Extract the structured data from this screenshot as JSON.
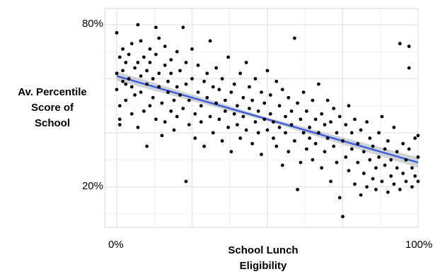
{
  "chart_data": {
    "type": "scatter",
    "title": "",
    "ylabel_lines": [
      "Av. Percentile",
      "Score of",
      "School"
    ],
    "xlabel_lines": [
      "School Lunch",
      "Eligibility"
    ],
    "xlim": [
      -0.04,
      1.0
    ],
    "ylim": [
      0.05,
      0.86
    ],
    "x_ticks": [
      {
        "value": 0.0,
        "label": "0%"
      },
      {
        "value": 1.0,
        "label": "100%"
      }
    ],
    "y_ticks": [
      {
        "value": 0.8,
        "label": "80%"
      },
      {
        "value": 0.2,
        "label": "20%"
      }
    ],
    "grid_x_major": [
      0.0,
      0.25,
      0.5,
      0.75,
      1.0
    ],
    "grid_x_minor": [
      0.125,
      0.375,
      0.625,
      0.875
    ],
    "grid_y_major": [
      0.2,
      0.4,
      0.6,
      0.8
    ],
    "grid_y_minor": [
      0.1,
      0.3,
      0.5,
      0.7
    ],
    "grid": true,
    "trend_line": {
      "x": [
        0.0,
        1.0
      ],
      "y": [
        0.61,
        0.29
      ],
      "color": "#3b5bdb",
      "band_halfwidth": 0.012
    },
    "points_color": "#000000",
    "points": [
      [
        0.0,
        0.77
      ],
      [
        0.0,
        0.62
      ],
      [
        0.0,
        0.56
      ],
      [
        0.01,
        0.5
      ],
      [
        0.01,
        0.43
      ],
      [
        0.01,
        0.45
      ],
      [
        0.01,
        0.68
      ],
      [
        0.02,
        0.71
      ],
      [
        0.02,
        0.63
      ],
      [
        0.02,
        0.59
      ],
      [
        0.03,
        0.58
      ],
      [
        0.03,
        0.66
      ],
      [
        0.03,
        0.52
      ],
      [
        0.04,
        0.6
      ],
      [
        0.04,
        0.69
      ],
      [
        0.05,
        0.47
      ],
      [
        0.05,
        0.57
      ],
      [
        0.05,
        0.73
      ],
      [
        0.06,
        0.64
      ],
      [
        0.06,
        0.54
      ],
      [
        0.07,
        0.8
      ],
      [
        0.07,
        0.66
      ],
      [
        0.07,
        0.42
      ],
      [
        0.08,
        0.61
      ],
      [
        0.08,
        0.74
      ],
      [
        0.08,
        0.55
      ],
      [
        0.09,
        0.48
      ],
      [
        0.09,
        0.68
      ],
      [
        0.1,
        0.35
      ],
      [
        0.1,
        0.63
      ],
      [
        0.1,
        0.58
      ],
      [
        0.11,
        0.71
      ],
      [
        0.11,
        0.5
      ],
      [
        0.11,
        0.66
      ],
      [
        0.12,
        0.6
      ],
      [
        0.12,
        0.53
      ],
      [
        0.13,
        0.79
      ],
      [
        0.13,
        0.45
      ],
      [
        0.13,
        0.69
      ],
      [
        0.14,
        0.57
      ],
      [
        0.14,
        0.75
      ],
      [
        0.14,
        0.62
      ],
      [
        0.15,
        0.39
      ],
      [
        0.15,
        0.51
      ],
      [
        0.16,
        0.72
      ],
      [
        0.16,
        0.65
      ],
      [
        0.16,
        0.44
      ],
      [
        0.17,
        0.59
      ],
      [
        0.17,
        0.55
      ],
      [
        0.18,
        0.67
      ],
      [
        0.18,
        0.48
      ],
      [
        0.18,
        0.62
      ],
      [
        0.19,
        0.52
      ],
      [
        0.19,
        0.41
      ],
      [
        0.2,
        0.7
      ],
      [
        0.2,
        0.57
      ],
      [
        0.2,
        0.46
      ],
      [
        0.21,
        0.63
      ],
      [
        0.21,
        0.54
      ],
      [
        0.22,
        0.79
      ],
      [
        0.22,
        0.49
      ],
      [
        0.23,
        0.22
      ],
      [
        0.23,
        0.66
      ],
      [
        0.23,
        0.58
      ],
      [
        0.24,
        0.43
      ],
      [
        0.24,
        0.52
      ],
      [
        0.25,
        0.71
      ],
      [
        0.25,
        0.6
      ],
      [
        0.26,
        0.47
      ],
      [
        0.26,
        0.38
      ],
      [
        0.27,
        0.55
      ],
      [
        0.27,
        0.65
      ],
      [
        0.28,
        0.5
      ],
      [
        0.28,
        0.44
      ],
      [
        0.29,
        0.59
      ],
      [
        0.29,
        0.35
      ],
      [
        0.3,
        0.62
      ],
      [
        0.3,
        0.53
      ],
      [
        0.31,
        0.74
      ],
      [
        0.31,
        0.46
      ],
      [
        0.32,
        0.57
      ],
      [
        0.32,
        0.4
      ],
      [
        0.33,
        0.51
      ],
      [
        0.33,
        0.64
      ],
      [
        0.34,
        0.45
      ],
      [
        0.34,
        0.56
      ],
      [
        0.35,
        0.37
      ],
      [
        0.35,
        0.6
      ],
      [
        0.36,
        0.48
      ],
      [
        0.36,
        0.52
      ],
      [
        0.37,
        0.42
      ],
      [
        0.37,
        0.68
      ],
      [
        0.38,
        0.55
      ],
      [
        0.38,
        0.33
      ],
      [
        0.39,
        0.47
      ],
      [
        0.39,
        0.58
      ],
      [
        0.4,
        0.5
      ],
      [
        0.4,
        0.43
      ],
      [
        0.41,
        0.62
      ],
      [
        0.41,
        0.38
      ],
      [
        0.42,
        0.53
      ],
      [
        0.42,
        0.46
      ],
      [
        0.43,
        0.66
      ],
      [
        0.43,
        0.41
      ],
      [
        0.44,
        0.49
      ],
      [
        0.44,
        0.57
      ],
      [
        0.45,
        0.36
      ],
      [
        0.45,
        0.52
      ],
      [
        0.46,
        0.44
      ],
      [
        0.46,
        0.6
      ],
      [
        0.47,
        0.48
      ],
      [
        0.47,
        0.4
      ],
      [
        0.48,
        0.55
      ],
      [
        0.48,
        0.32
      ],
      [
        0.49,
        0.45
      ],
      [
        0.49,
        0.51
      ],
      [
        0.5,
        0.63
      ],
      [
        0.5,
        0.41
      ],
      [
        0.51,
        0.47
      ],
      [
        0.51,
        0.54
      ],
      [
        0.52,
        0.38
      ],
      [
        0.52,
        0.44
      ],
      [
        0.53,
        0.59
      ],
      [
        0.53,
        0.35
      ],
      [
        0.54,
        0.5
      ],
      [
        0.54,
        0.42
      ],
      [
        0.55,
        0.56
      ],
      [
        0.55,
        0.28
      ],
      [
        0.56,
        0.46
      ],
      [
        0.56,
        0.4
      ],
      [
        0.57,
        0.53
      ],
      [
        0.57,
        0.33
      ],
      [
        0.58,
        0.48
      ],
      [
        0.58,
        0.43
      ],
      [
        0.59,
        0.75
      ],
      [
        0.59,
        0.37
      ],
      [
        0.6,
        0.51
      ],
      [
        0.6,
        0.19
      ],
      [
        0.61,
        0.45
      ],
      [
        0.61,
        0.29
      ],
      [
        0.62,
        0.4
      ],
      [
        0.62,
        0.55
      ],
      [
        0.63,
        0.34
      ],
      [
        0.63,
        0.48
      ],
      [
        0.64,
        0.42
      ],
      [
        0.64,
        0.38
      ],
      [
        0.65,
        0.52
      ],
      [
        0.65,
        0.3
      ],
      [
        0.66,
        0.45
      ],
      [
        0.66,
        0.36
      ],
      [
        0.67,
        0.58
      ],
      [
        0.67,
        0.4
      ],
      [
        0.68,
        0.27
      ],
      [
        0.68,
        0.47
      ],
      [
        0.69,
        0.33
      ],
      [
        0.69,
        0.43
      ],
      [
        0.7,
        0.52
      ],
      [
        0.7,
        0.38
      ],
      [
        0.71,
        0.22
      ],
      [
        0.71,
        0.44
      ],
      [
        0.72,
        0.35
      ],
      [
        0.72,
        0.49
      ],
      [
        0.73,
        0.29
      ],
      [
        0.73,
        0.4
      ],
      [
        0.74,
        0.16
      ],
      [
        0.74,
        0.46
      ],
      [
        0.75,
        0.09
      ],
      [
        0.75,
        0.37
      ],
      [
        0.76,
        0.31
      ],
      [
        0.76,
        0.43
      ],
      [
        0.77,
        0.26
      ],
      [
        0.77,
        0.5
      ],
      [
        0.78,
        0.34
      ],
      [
        0.78,
        0.4
      ],
      [
        0.79,
        0.21
      ],
      [
        0.79,
        0.45
      ],
      [
        0.8,
        0.29
      ],
      [
        0.8,
        0.36
      ],
      [
        0.81,
        0.17
      ],
      [
        0.81,
        0.41
      ],
      [
        0.82,
        0.25
      ],
      [
        0.82,
        0.33
      ],
      [
        0.83,
        0.44
      ],
      [
        0.83,
        0.2
      ],
      [
        0.84,
        0.3
      ],
      [
        0.84,
        0.38
      ],
      [
        0.85,
        0.23
      ],
      [
        0.85,
        0.35
      ],
      [
        0.86,
        0.27
      ],
      [
        0.86,
        0.19
      ],
      [
        0.87,
        0.4
      ],
      [
        0.87,
        0.31
      ],
      [
        0.88,
        0.22
      ],
      [
        0.88,
        0.46
      ],
      [
        0.89,
        0.28
      ],
      [
        0.89,
        0.34
      ],
      [
        0.9,
        0.18
      ],
      [
        0.9,
        0.37
      ],
      [
        0.91,
        0.24
      ],
      [
        0.91,
        0.3
      ],
      [
        0.92,
        0.42
      ],
      [
        0.92,
        0.21
      ],
      [
        0.93,
        0.33
      ],
      [
        0.93,
        0.27
      ],
      [
        0.94,
        0.73
      ],
      [
        0.94,
        0.19
      ],
      [
        0.95,
        0.36
      ],
      [
        0.95,
        0.25
      ],
      [
        0.96,
        0.3
      ],
      [
        0.96,
        0.22
      ],
      [
        0.97,
        0.64
      ],
      [
        0.97,
        0.34
      ],
      [
        0.98,
        0.27
      ],
      [
        0.98,
        0.2
      ],
      [
        0.99,
        0.38
      ],
      [
        0.99,
        0.24
      ],
      [
        1.0,
        0.31
      ],
      [
        1.0,
        0.39
      ],
      [
        1.0,
        0.22
      ],
      [
        0.97,
        0.72
      ]
    ]
  }
}
